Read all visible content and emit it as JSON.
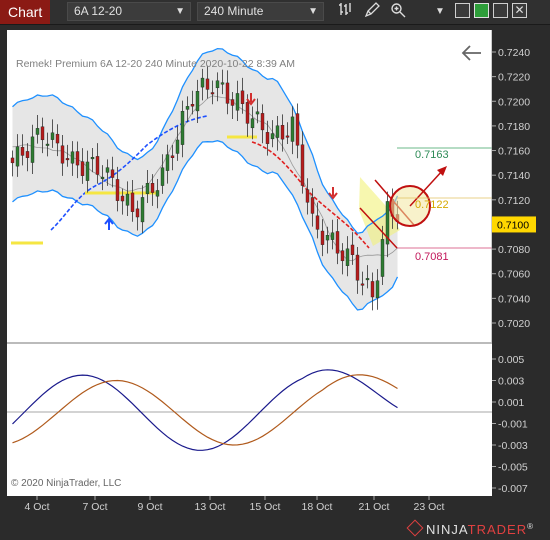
{
  "toolbar": {
    "chart_label": "Chart",
    "instrument": "6A 12-20",
    "interval": "240 Minute",
    "icons": [
      "bars-style-icon",
      "drawing-tool-icon",
      "zoom-icon",
      "dropdown-chevron-icon"
    ],
    "window_buttons": [
      "restore-window",
      "maximize-window-green",
      "maximize-window",
      "close-window"
    ]
  },
  "header": {
    "info": "Remek!  Premium  6A 12-20  240 Minute  2020-10-22 8:39 AM"
  },
  "copyright": "© 2020 NinjaTrader, LLC",
  "brand": {
    "name": "NINJA",
    "name_accent": "TRADER",
    "mark": "®"
  },
  "price_axis": {
    "ticks": [
      "0.7240",
      "0.7220",
      "0.7200",
      "0.7180",
      "0.7160",
      "0.7140",
      "0.7120",
      "0.7100",
      "0.7080",
      "0.7060",
      "0.7040",
      "0.7020"
    ],
    "marker_upper": "0.7163",
    "marker_mid": "0.7122",
    "marker_current": "0.7100",
    "marker_lower": "0.7081"
  },
  "osc_axis": {
    "ticks": [
      "0.005",
      "0.003",
      "0.001",
      "-0.001",
      "-0.003",
      "-0.005",
      "-0.007"
    ]
  },
  "date_axis": {
    "ticks": [
      "4 Oct",
      "7 Oct",
      "9 Oct",
      "13 Oct",
      "15 Oct",
      "18 Oct",
      "21 Oct",
      "23 Oct"
    ]
  },
  "colors": {
    "frame": "#2b2b2b",
    "accent_red": "#8b1a14",
    "band_blue": "#1e90ff",
    "candle_up": "#2e7d32",
    "candle_down": "#b71c1c",
    "signal_red": "#d32f2f",
    "osc_fast": "#1a1a8c",
    "osc_slow": "#b05a1c",
    "upper_marker": "#2e8b57",
    "lower_marker": "#c2185b",
    "current_marker": "#ffd700"
  }
}
